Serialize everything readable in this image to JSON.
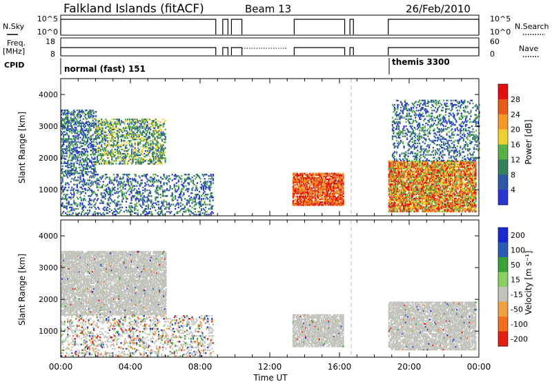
{
  "header": {
    "station": "Falkland Islands (fitACF)",
    "beam": "Beam 13",
    "date": "26/Feb/2010"
  },
  "summary_panels": {
    "nsky": {
      "left_label": "N.Sky",
      "left_ticks": [
        "10^5",
        "10^0"
      ],
      "right_label": "N.Search",
      "right_ticks": [
        "10^5",
        "10^0"
      ]
    },
    "freq": {
      "left_label_line1": "Freq.",
      "left_label_line2": "[MHz]",
      "left_ticks": [
        "18",
        "8"
      ],
      "right_label": "Nave",
      "right_ticks": [
        "60",
        "0"
      ]
    },
    "cpid": {
      "label": "CPID",
      "modes": [
        {
          "name": "normal (fast) 151",
          "start_hour": 0
        },
        {
          "name": "themis 3300",
          "start_hour": 19
        }
      ]
    }
  },
  "colors": {
    "power_scale": [
      "#2a35d8",
      "#2c58a8",
      "#36805a",
      "#58b048",
      "#f0d030",
      "#f09a28",
      "#e85a1c",
      "#e01010"
    ],
    "velocity_scale": [
      "#1a2ad0",
      "#2c5ab4",
      "#3aa03a",
      "#8ad060",
      "#c4c4be",
      "#f0a040",
      "#f07020",
      "#e02010"
    ],
    "ground_scatter": "#c4c4be"
  },
  "chart_data": [
    {
      "type": "heatmap",
      "title": "Power",
      "xlabel": "Time UT",
      "ylabel": "Slant Range [km]",
      "x_ticks": [
        "00:00",
        "04:00",
        "08:00",
        "12:00",
        "16:00",
        "20:00",
        "00:00"
      ],
      "xlim_hours": [
        0,
        24
      ],
      "y_ticks": [
        "1000",
        "2000",
        "3000",
        "4000"
      ],
      "ylim_km": [
        180,
        4500
      ],
      "colorbar": {
        "label": "Power [dB]",
        "ticks": [
          "4",
          "8",
          "12",
          "16",
          "20",
          "24",
          "28"
        ],
        "range": [
          0,
          32
        ]
      },
      "echo_regions": [
        {
          "t0": 0,
          "t1": 2,
          "r0": 1500,
          "r1": 3500,
          "level": "mixed low"
        },
        {
          "t0": 2,
          "t1": 6,
          "r0": 1800,
          "r1": 3200,
          "level": "mixed low-mid"
        },
        {
          "t0": 0,
          "t1": 8.7,
          "r0": 200,
          "r1": 1500,
          "level": "sparse low"
        },
        {
          "t0": 13.3,
          "t1": 16.2,
          "r0": 500,
          "r1": 1500,
          "level": "high"
        },
        {
          "t0": 18.8,
          "t1": 23.8,
          "r0": 300,
          "r1": 1900,
          "level": "mid-high"
        },
        {
          "t0": 19,
          "t1": 24,
          "r0": 1900,
          "r1": 3800,
          "level": "sparse low"
        }
      ]
    },
    {
      "type": "heatmap",
      "title": "Velocity",
      "xlabel": "Time UT",
      "ylabel": "Slant Range [km]",
      "x_ticks": [
        "00:00",
        "04:00",
        "08:00",
        "12:00",
        "16:00",
        "20:00",
        "00:00"
      ],
      "xlim_hours": [
        0,
        24
      ],
      "y_ticks": [
        "1000",
        "2000",
        "3000",
        "4000"
      ],
      "ylim_km": [
        180,
        4500
      ],
      "colorbar": {
        "label": "Velocity [m s⁻¹]",
        "ticks": [
          "200",
          "100",
          "50",
          "15",
          "-15",
          "-50",
          "-100",
          "-200"
        ],
        "range": [
          -250,
          250
        ]
      },
      "echo_regions": [
        {
          "t0": 0,
          "t1": 6,
          "r0": 1500,
          "r1": 3500,
          "level": "ground scatter"
        },
        {
          "t0": 0,
          "t1": 8.7,
          "r0": 200,
          "r1": 1500,
          "level": "sparse mixed"
        },
        {
          "t0": 13.3,
          "t1": 16.2,
          "r0": 500,
          "r1": 1500,
          "level": "ground scatter"
        },
        {
          "t0": 18.8,
          "t1": 23.8,
          "r0": 400,
          "r1": 1900,
          "level": "ground scatter"
        }
      ]
    }
  ]
}
